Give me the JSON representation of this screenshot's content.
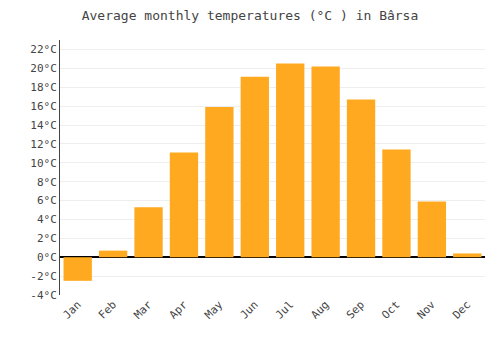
{
  "chart_data": {
    "type": "bar",
    "title": "Average monthly temperatures (°C ) in Bârsa",
    "categories": [
      "Jan",
      "Feb",
      "Mar",
      "Apr",
      "May",
      "Jun",
      "Jul",
      "Aug",
      "Sep",
      "Oct",
      "Nov",
      "Dec"
    ],
    "values": [
      -2.5,
      0.7,
      5.3,
      11.1,
      15.9,
      19.1,
      20.5,
      20.2,
      16.7,
      11.4,
      5.9,
      0.4
    ],
    "color": "#FFA920",
    "ylim": [
      -4,
      23
    ],
    "yticks": [
      {
        "value": -4,
        "label": "-4°C"
      },
      {
        "value": -2,
        "label": "-2°C"
      },
      {
        "value": 0,
        "label": "0°C"
      },
      {
        "value": 2,
        "label": "2°C"
      },
      {
        "value": 4,
        "label": "4°C"
      },
      {
        "value": 6,
        "label": "6°C"
      },
      {
        "value": 8,
        "label": "8°C"
      },
      {
        "value": 10,
        "label": "10°C"
      },
      {
        "value": 12,
        "label": "12°C"
      },
      {
        "value": 14,
        "label": "14°C"
      },
      {
        "value": 16,
        "label": "16°C"
      },
      {
        "value": 18,
        "label": "18°C"
      },
      {
        "value": 20,
        "label": "20°C"
      },
      {
        "value": 22,
        "label": "22°C"
      }
    ],
    "grid": true
  }
}
